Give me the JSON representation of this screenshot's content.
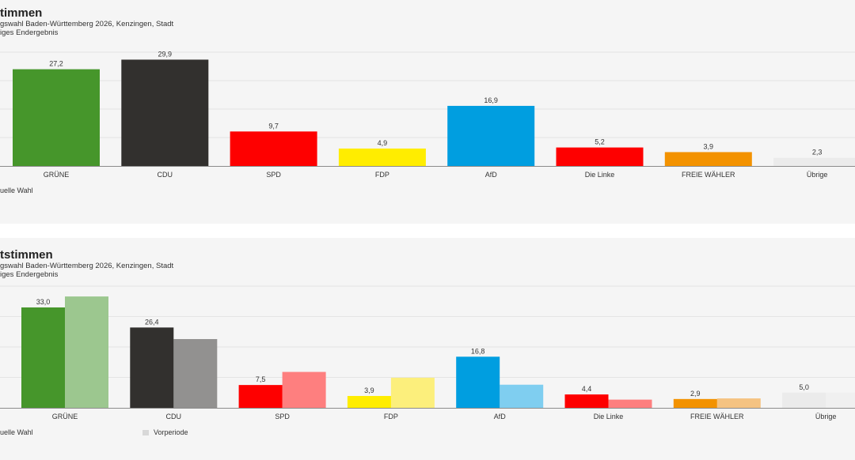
{
  "colors": {
    "GRÜNE": "#46962b",
    "CDU": "#32302e",
    "SPD": "#fe0000",
    "FDP": "#ffed00",
    "AfD": "#009ee0",
    "Die Linke": "#fe0000",
    "FREIE WÄHLER": "#f39200",
    "Übrige": "#ebebeb"
  },
  "prev_colors": {
    "GRÜNE": "#9cc78f",
    "CDU": "#929190",
    "SPD": "#fe7f7f",
    "FDP": "#fcef7c",
    "AfD": "#7fcef0",
    "Die Linke": "#fe7f7f",
    "FREIE WÄHLER": "#f5c382",
    "Übrige": "#f0f0f0"
  },
  "chart_data": [
    {
      "type": "bar",
      "title": "timmen",
      "subtitle": "gswahl Baden-Württemberg 2026, Kenzingen, Stadt",
      "status": "iges Endergebnis",
      "categories": [
        "GRÜNE",
        "CDU",
        "SPD",
        "FDP",
        "AfD",
        "Die Linke",
        "FREIE WÄHLER",
        "Übrige"
      ],
      "series": [
        {
          "name": "uelle Wahl",
          "values": [
            27.2,
            29.9,
            9.7,
            4.9,
            16.9,
            5.2,
            3.9,
            2.3
          ],
          "labels": [
            "27,2",
            "29,9",
            "9,7",
            "4,9",
            "16,9",
            "5,2",
            "3,9",
            "2,3"
          ]
        }
      ],
      "ylim": [
        0,
        32
      ],
      "grid": true,
      "legend": [
        "uelle Wahl"
      ]
    },
    {
      "type": "bar",
      "title": "tstimmen",
      "subtitle": "gswahl Baden-Württemberg 2026, Kenzingen, Stadt",
      "status": "iges Endergebnis",
      "categories": [
        "GRÜNE",
        "CDU",
        "SPD",
        "FDP",
        "AfD",
        "Die Linke",
        "FREIE WÄHLER",
        "Übrige"
      ],
      "series": [
        {
          "name": "uelle Wahl",
          "values": [
            33.0,
            26.4,
            7.5,
            3.9,
            16.8,
            4.4,
            2.9,
            5.0
          ],
          "labels": [
            "33,0",
            "26,4",
            "7,5",
            "3,9",
            "16,8",
            "4,4",
            "2,9",
            "5,0"
          ]
        },
        {
          "name": "Vorperiode",
          "values": [
            36.6,
            22.6,
            11.8,
            9.9,
            7.6,
            2.7,
            3.1,
            5.0
          ]
        }
      ],
      "ylim": [
        0,
        40
      ],
      "grid": true,
      "legend": [
        "uelle Wahl",
        "Vorperiode"
      ]
    }
  ]
}
